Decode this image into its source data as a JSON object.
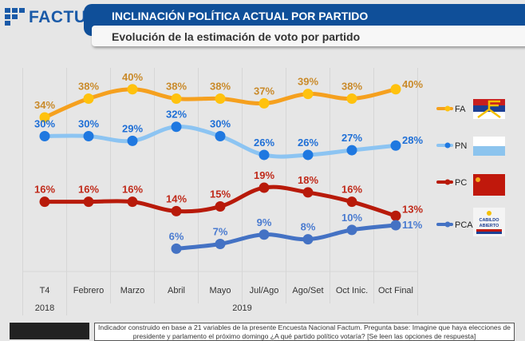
{
  "header": {
    "logo": "FACTUM",
    "title": "INCLINACIÓN POLÍTICA ACTUAL POR PARTIDO",
    "subtitle": "Evolución de la estimación de voto por partido"
  },
  "footer": {
    "note": "Indicador construido en base a 21 variables de la presente Encuesta Nacional Factum. Pregunta base: Imagine que haya elecciones de presidente y parlamento el próximo domingo ¿A qué partido político votaría? [Se leen las opciones de respuesta]"
  },
  "chart_data": {
    "type": "line",
    "title": "Evolución de la estimación de voto por partido",
    "categories": [
      "T4",
      "Febrero",
      "Marzo",
      "Abril",
      "Mayo",
      "Jul/Ago",
      "Ago/Set",
      "Oct Inic.",
      "Oct Final"
    ],
    "year_groups": [
      {
        "label": "2018",
        "span": [
          0,
          0
        ]
      },
      {
        "label": "2019",
        "span": [
          1,
          8
        ]
      }
    ],
    "unit": "%",
    "series": [
      {
        "name": "FA",
        "values": [
          34,
          38,
          40,
          38,
          38,
          37,
          39,
          38,
          40
        ],
        "line": "#f5a01e",
        "marker": "#ffc20e",
        "label": "#c98a2a"
      },
      {
        "name": "PN",
        "values": [
          30,
          30,
          29,
          32,
          30,
          26,
          26,
          27,
          28
        ],
        "line": "#8cc4f2",
        "marker": "#1f78e0",
        "label": "#1f6fd6"
      },
      {
        "name": "PC",
        "values": [
          16,
          16,
          16,
          14,
          15,
          19,
          18,
          16,
          13
        ],
        "line": "#b81a0a",
        "marker": "#b81a0a",
        "label": "#c02a1a"
      },
      {
        "name": "PCA",
        "values": [
          null,
          null,
          null,
          6,
          7,
          9,
          8,
          10,
          11
        ],
        "line": "#4472c4",
        "marker": "#4472c4",
        "label": "#4a7bd0"
      }
    ],
    "legend": "right",
    "grid": "vertical"
  }
}
